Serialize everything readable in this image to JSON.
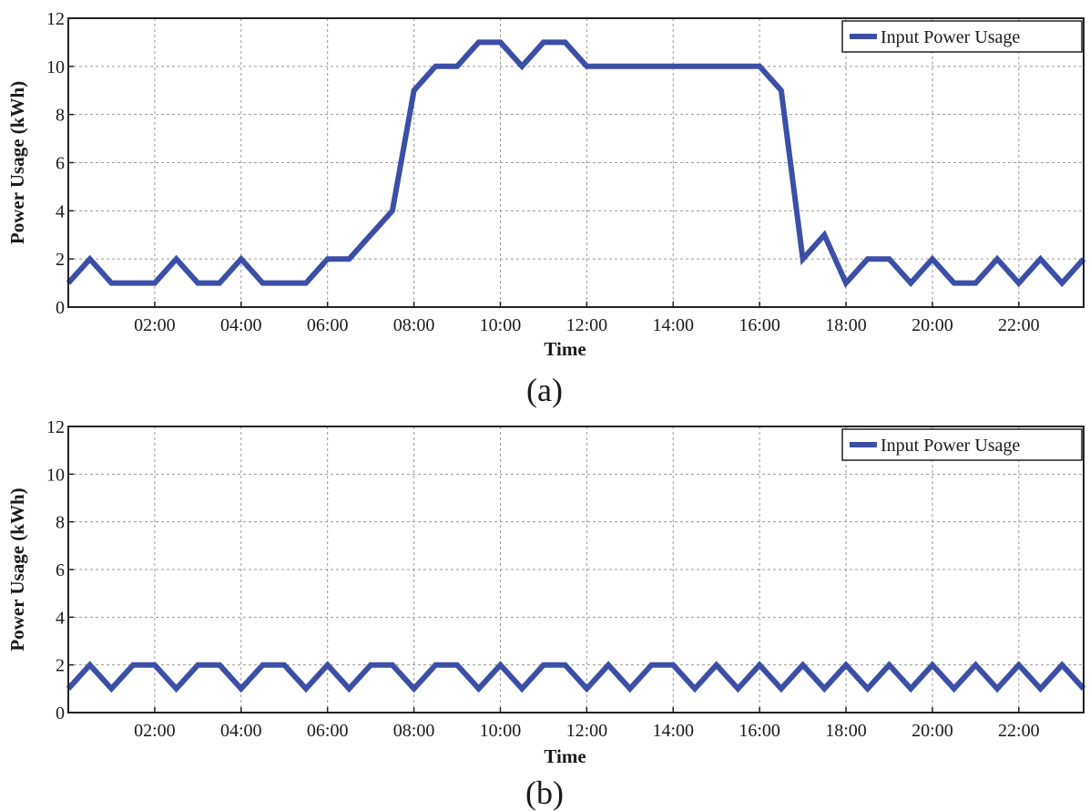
{
  "chart_data": [
    {
      "type": "line",
      "panel_label": "(a)",
      "xlabel": "Time",
      "ylabel": "Power Usage (kWh)",
      "ylim": [
        0,
        12
      ],
      "xlim": [
        "00:00",
        "23:30"
      ],
      "yticks": [
        "0",
        "2",
        "4",
        "6",
        "8",
        "10",
        "12"
      ],
      "xticks": [
        "02:00",
        "04:00",
        "06:00",
        "08:00",
        "10:00",
        "12:00",
        "14:00",
        "16:00",
        "18:00",
        "20:00",
        "22:00"
      ],
      "grid": true,
      "legend_position": "top-right",
      "series": [
        {
          "name": "Input Power Usage",
          "color": "#3b4fa6",
          "x": [
            "00:00",
            "00:30",
            "01:00",
            "01:30",
            "02:00",
            "02:30",
            "03:00",
            "03:30",
            "04:00",
            "04:30",
            "05:00",
            "05:30",
            "06:00",
            "06:30",
            "07:00",
            "07:30",
            "08:00",
            "08:30",
            "09:00",
            "09:30",
            "10:00",
            "10:30",
            "11:00",
            "11:30",
            "12:00",
            "12:30",
            "13:00",
            "13:30",
            "14:00",
            "14:30",
            "15:00",
            "15:30",
            "16:00",
            "16:30",
            "17:00",
            "17:30",
            "18:00",
            "18:30",
            "19:00",
            "19:30",
            "20:00",
            "20:30",
            "21:00",
            "21:30",
            "22:00",
            "22:30",
            "23:00",
            "23:30"
          ],
          "values": [
            1,
            2,
            1,
            1,
            1,
            2,
            1,
            1,
            2,
            1,
            1,
            1,
            2,
            2,
            3,
            4,
            9,
            10,
            10,
            11,
            11,
            10,
            11,
            11,
            10,
            10,
            10,
            10,
            10,
            10,
            10,
            10,
            10,
            9,
            2,
            3,
            1,
            2,
            2,
            1,
            2,
            1,
            1,
            2,
            1,
            2,
            1,
            2
          ]
        }
      ]
    },
    {
      "type": "line",
      "panel_label": "(b)",
      "xlabel": "Time",
      "ylabel": "Power Usage (kWh)",
      "ylim": [
        0,
        12
      ],
      "xlim": [
        "00:00",
        "23:30"
      ],
      "yticks": [
        "0",
        "2",
        "4",
        "6",
        "8",
        "10",
        "12"
      ],
      "xticks": [
        "02:00",
        "04:00",
        "06:00",
        "08:00",
        "10:00",
        "12:00",
        "14:00",
        "16:00",
        "18:00",
        "20:00",
        "22:00"
      ],
      "grid": true,
      "legend_position": "top-right",
      "series": [
        {
          "name": "Input Power Usage",
          "color": "#3b4fa6",
          "x": [
            "00:00",
            "00:30",
            "01:00",
            "01:30",
            "02:00",
            "02:30",
            "03:00",
            "03:30",
            "04:00",
            "04:30",
            "05:00",
            "05:30",
            "06:00",
            "06:30",
            "07:00",
            "07:30",
            "08:00",
            "08:30",
            "09:00",
            "09:30",
            "10:00",
            "10:30",
            "11:00",
            "11:30",
            "12:00",
            "12:30",
            "13:00",
            "13:30",
            "14:00",
            "14:30",
            "15:00",
            "15:30",
            "16:00",
            "16:30",
            "17:00",
            "17:30",
            "18:00",
            "18:30",
            "19:00",
            "19:30",
            "20:00",
            "20:30",
            "21:00",
            "21:30",
            "22:00",
            "22:30",
            "23:00",
            "23:30"
          ],
          "values": [
            1,
            2,
            1,
            2,
            2,
            1,
            2,
            2,
            1,
            2,
            2,
            1,
            2,
            1,
            2,
            2,
            1,
            2,
            2,
            1,
            2,
            1,
            2,
            2,
            1,
            2,
            1,
            2,
            2,
            1,
            2,
            1,
            2,
            1,
            2,
            1,
            2,
            1,
            2,
            1,
            2,
            1,
            2,
            1,
            2,
            1,
            2,
            1
          ]
        }
      ]
    }
  ]
}
